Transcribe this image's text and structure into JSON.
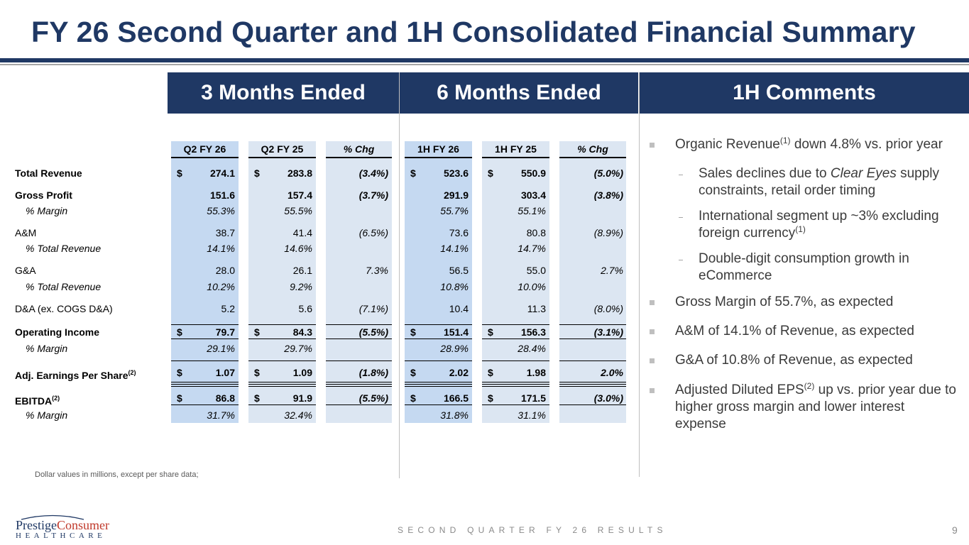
{
  "title": "FY 26 Second Quarter and 1H Consolidated Financial Summary",
  "sections": {
    "three_months": "3 Months Ended",
    "six_months": "6 Months Ended",
    "comments": "1H Comments"
  },
  "columns": [
    "Q2 FY 26",
    "Q2 FY 25",
    "% Chg",
    "1H FY 26",
    "1H FY 25",
    "% Chg"
  ],
  "currency_symbol": "$",
  "rows": [
    {
      "label": "Total Revenue",
      "q2fy26": "274.1",
      "q2fy25": "283.8",
      "q_chg": "(3.4%)",
      "h1fy26": "523.6",
      "h1fy25": "550.9",
      "h_chg": "(5.0%)"
    },
    {
      "label": "Gross Profit",
      "q2fy26": "151.6",
      "q2fy25": "157.4",
      "q_chg": "(3.7%)",
      "h1fy26": "291.9",
      "h1fy25": "303.4",
      "h_chg": "(3.8%)"
    },
    {
      "label": "% Margin",
      "q2fy26": "55.3%",
      "q2fy25": "55.5%",
      "h1fy26": "55.7%",
      "h1fy25": "55.1%"
    },
    {
      "label": "A&M",
      "q2fy26": "38.7",
      "q2fy25": "41.4",
      "q_chg": "(6.5%)",
      "h1fy26": "73.6",
      "h1fy25": "80.8",
      "h_chg": "(8.9%)"
    },
    {
      "label": "% Total Revenue",
      "q2fy26": "14.1%",
      "q2fy25": "14.6%",
      "h1fy26": "14.1%",
      "h1fy25": "14.7%"
    },
    {
      "label": "G&A",
      "q2fy26": "28.0",
      "q2fy25": "26.1",
      "q_chg": "7.3%",
      "h1fy26": "56.5",
      "h1fy25": "55.0",
      "h_chg": "2.7%"
    },
    {
      "label": "% Total Revenue",
      "q2fy26": "10.2%",
      "q2fy25": "9.2%",
      "h1fy26": "10.8%",
      "h1fy25": "10.0%"
    },
    {
      "label": "D&A (ex. COGS D&A)",
      "q2fy26": "5.2",
      "q2fy25": "5.6",
      "q_chg": "(7.1%)",
      "h1fy26": "10.4",
      "h1fy25": "11.3",
      "h_chg": "(8.0%)"
    },
    {
      "label": "Operating Income",
      "q2fy26": "79.7",
      "q2fy25": "84.3",
      "q_chg": "(5.5%)",
      "h1fy26": "151.4",
      "h1fy25": "156.3",
      "h_chg": "(3.1%)"
    },
    {
      "label": "% Margin",
      "q2fy26": "29.1%",
      "q2fy25": "29.7%",
      "h1fy26": "28.9%",
      "h1fy25": "28.4%"
    },
    {
      "label": "Adj. Earnings Per Share",
      "label_sup": "(2)",
      "q2fy26": "1.07",
      "q2fy25": "1.09",
      "q_chg": "(1.8%)",
      "h1fy26": "2.02",
      "h1fy25": "1.98",
      "h_chg": "2.0%"
    },
    {
      "label": "EBITDA",
      "label_sup": "(2)",
      "q2fy26": "86.8",
      "q2fy25": "91.9",
      "q_chg": "(5.5%)",
      "h1fy26": "166.5",
      "h1fy25": "171.5",
      "h_chg": "(3.0%)"
    },
    {
      "label": "% Margin",
      "q2fy26": "31.7%",
      "q2fy25": "32.4%",
      "h1fy26": "31.8%",
      "h1fy25": "31.1%"
    }
  ],
  "comments": [
    {
      "pre": "Organic Revenue",
      "sup": "(1)",
      "post": " down 4.8% vs. prior year"
    },
    {
      "pre": "Sales declines due to ",
      "em": "Clear Eyes",
      "post": " supply constraints, retail order timing"
    },
    {
      "pre": "International segment up ~3% excluding foreign currency",
      "sup": "(1)"
    },
    {
      "pre": "Double-digit consumption growth in eCommerce"
    },
    {
      "pre": "Gross Margin of 55.7%, as expected"
    },
    {
      "pre": "A&M of 14.1% of Revenue, as expected"
    },
    {
      "pre": "G&A of 10.8% of Revenue, as expected"
    },
    {
      "pre": "Adjusted Diluted EPS",
      "sup": "(2)",
      "post": " up vs. prior year due to higher gross margin and lower interest expense"
    }
  ],
  "footnote": "Dollar values in millions, except per share data;",
  "footer": "SECOND QUARTER FY 26 RESULTS",
  "page_number": "9",
  "logo": {
    "word_main": "Prestige",
    "word_accent": "Consumer",
    "sub": "HEALTHCARE"
  },
  "colors": {
    "navy": "#1f3864",
    "shade": "#dce6f2",
    "shade_blue": "#c5d9f1"
  }
}
